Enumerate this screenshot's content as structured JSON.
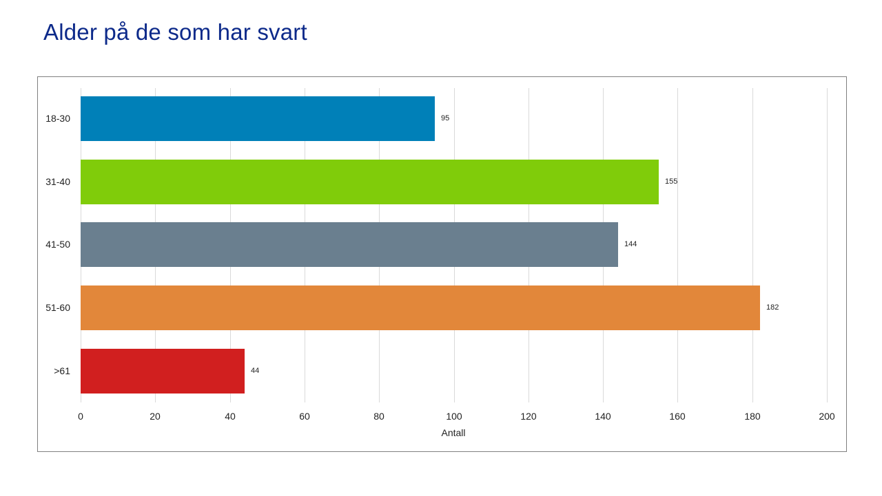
{
  "title": "Alder på de som har svart",
  "chart_data": {
    "type": "bar",
    "orientation": "horizontal",
    "title": "Alder på de som har svart",
    "categories": [
      "18-30",
      "31-40",
      "41-50",
      "51-60",
      ">61"
    ],
    "values": [
      95,
      155,
      144,
      182,
      44
    ],
    "colors": [
      "#0080b8",
      "#80cc0a",
      "#6a7f8f",
      "#e2873a",
      "#d11f1f"
    ],
    "xlabel": "Antall",
    "ylabel": "",
    "xlim": [
      0,
      200
    ],
    "xticks": [
      "0",
      "20",
      "40",
      "60",
      "80",
      "100",
      "120",
      "140",
      "160",
      "180",
      "200"
    ],
    "grid": true,
    "legend": "none",
    "data_labels": [
      "95",
      "155",
      "144",
      "182",
      "44"
    ]
  }
}
